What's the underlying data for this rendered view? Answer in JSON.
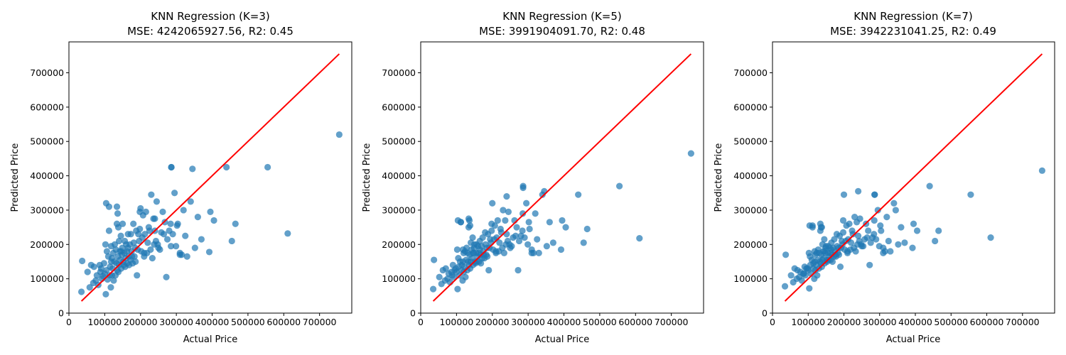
{
  "figure": {
    "background": "#ffffff"
  },
  "style": {
    "point_color": "#1f77b4",
    "point_opacity": 0.7,
    "reference_line_color": "#ff0000"
  },
  "chart_data": [
    {
      "type": "scatter",
      "title_line1": "KNN Regression (K=3)",
      "title_line2": "MSE: 4242065927.56, R2: 0.45",
      "xlabel": "Actual Price",
      "ylabel": "Predicted Price",
      "xlim": [
        0,
        790000
      ],
      "ylim": [
        0,
        790000
      ],
      "xticks": [
        0,
        100000,
        200000,
        300000,
        400000,
        500000,
        600000,
        700000
      ],
      "yticks": [
        0,
        100000,
        200000,
        300000,
        400000,
        500000,
        600000,
        700000
      ],
      "reference_line": {
        "x": [
          34900,
          755000
        ],
        "y": [
          34900,
          755000
        ]
      },
      "grid": false,
      "points": {
        "x": [
          34900,
          37000,
          52000,
          58000,
          62000,
          68000,
          70000,
          75000,
          78000,
          82000,
          86000,
          88000,
          90000,
          92000,
          95000,
          98000,
          100000,
          102000,
          103000,
          105000,
          106000,
          108000,
          110000,
          112000,
          114000,
          115000,
          117000,
          118000,
          120000,
          120000,
          122000,
          124000,
          125000,
          127000,
          128000,
          130000,
          131000,
          133000,
          134000,
          135000,
          136000,
          137000,
          138000,
          140000,
          140000,
          142000,
          143000,
          145000,
          146000,
          148000,
          149000,
          150000,
          152000,
          153000,
          155000,
          156000,
          157000,
          159000,
          160000,
          162000,
          163000,
          165000,
          167000,
          168000,
          170000,
          172000,
          173000,
          175000,
          176000,
          178000,
          180000,
          181000,
          183000,
          185000,
          186000,
          188000,
          190000,
          192000,
          194000,
          196000,
          198000,
          200000,
          202000,
          205000,
          207000,
          210000,
          212000,
          215000,
          218000,
          220000,
          223000,
          225000,
          228000,
          230000,
          233000,
          236000,
          238000,
          240000,
          243000,
          245000,
          248000,
          250000,
          254000,
          258000,
          262000,
          265000,
          268000,
          272000,
          275000,
          280000,
          284000,
          286000,
          290000,
          295000,
          299000,
          304000,
          310000,
          315000,
          320000,
          325000,
          330000,
          340000,
          345000,
          352000,
          360000,
          370000,
          392000,
          395000,
          405000,
          440000,
          455000,
          465000,
          555000,
          611000,
          755000,
          104000,
          112000,
          134000,
          138000,
          198000,
          240000,
          285000,
          286000,
          302000,
          310000,
          118000,
          210000,
          146000,
          165000
        ],
        "y": [
          62000,
          152000,
          120000,
          75000,
          140000,
          88000,
          135000,
          95000,
          110000,
          82000,
          140000,
          120000,
          130000,
          100000,
          108000,
          145000,
          115000,
          200000,
          55000,
          125000,
          180000,
          98000,
          165000,
          240000,
          110000,
          135000,
          75000,
          150000,
          110000,
          160000,
          130000,
          175000,
          95000,
          150000,
          200000,
          110000,
          185000,
          145000,
          260000,
          125000,
          290000,
          165000,
          120000,
          140000,
          210000,
          180000,
          155000,
          225000,
          130000,
          170000,
          190000,
          260000,
          150000,
          140000,
          175000,
          210000,
          135000,
          160000,
          200000,
          180000,
          145000,
          190000,
          165000,
          140000,
          200000,
          155000,
          230000,
          180000,
          165000,
          145000,
          260000,
          205000,
          165000,
          190000,
          150000,
          240000,
          110000,
          185000,
          230000,
          210000,
          295000,
          305000,
          180000,
          220000,
          285000,
          165000,
          230000,
          295000,
          175000,
          205000,
          250000,
          240000,
          185000,
          345000,
          160000,
          275000,
          200000,
          240000,
          210000,
          325000,
          200000,
          190000,
          185000,
          235000,
          295000,
          230000,
          265000,
          105000,
          215000,
          240000,
          260000,
          425000,
          230000,
          350000,
          195000,
          260000,
          175000,
          170000,
          300000,
          225000,
          165000,
          325000,
          420000,
          190000,
          280000,
          215000,
          178000,
          295000,
          270000,
          425000,
          210000,
          260000,
          425000,
          232000,
          520000,
          320000,
          310000,
          310000,
          250000,
          245000,
          275000,
          195000,
          425000,
          255000,
          170000,
          195000,
          175000,
          180000,
          230000
        ]
      }
    },
    {
      "type": "scatter",
      "title_line1": "KNN Regression (K=5)",
      "title_line2": "MSE: 3991904091.70, R2: 0.48",
      "xlabel": "Actual Price",
      "ylabel": "Predicted Price",
      "xlim": [
        0,
        790000
      ],
      "ylim": [
        0,
        790000
      ],
      "xticks": [
        0,
        100000,
        200000,
        300000,
        400000,
        500000,
        600000,
        700000
      ],
      "yticks": [
        0,
        100000,
        200000,
        300000,
        400000,
        500000,
        600000,
        700000
      ],
      "reference_line": {
        "x": [
          34900,
          755000
        ],
        "y": [
          34900,
          755000
        ]
      },
      "grid": false,
      "points": {
        "x": [
          34900,
          37000,
          52000,
          58000,
          62000,
          68000,
          70000,
          75000,
          78000,
          82000,
          86000,
          88000,
          90000,
          92000,
          95000,
          98000,
          100000,
          102000,
          103000,
          105000,
          106000,
          108000,
          110000,
          112000,
          114000,
          115000,
          117000,
          118000,
          120000,
          120000,
          122000,
          124000,
          125000,
          127000,
          128000,
          130000,
          131000,
          133000,
          134000,
          135000,
          136000,
          137000,
          138000,
          140000,
          140000,
          142000,
          143000,
          145000,
          146000,
          148000,
          149000,
          150000,
          152000,
          153000,
          155000,
          156000,
          157000,
          159000,
          160000,
          162000,
          163000,
          165000,
          167000,
          168000,
          170000,
          172000,
          173000,
          175000,
          176000,
          178000,
          180000,
          181000,
          183000,
          185000,
          186000,
          188000,
          190000,
          192000,
          194000,
          196000,
          198000,
          200000,
          202000,
          205000,
          207000,
          210000,
          212000,
          215000,
          218000,
          220000,
          223000,
          225000,
          228000,
          230000,
          233000,
          236000,
          238000,
          240000,
          243000,
          245000,
          248000,
          250000,
          254000,
          258000,
          262000,
          265000,
          268000,
          272000,
          275000,
          280000,
          284000,
          286000,
          290000,
          295000,
          299000,
          304000,
          310000,
          315000,
          320000,
          325000,
          330000,
          340000,
          345000,
          352000,
          360000,
          370000,
          392000,
          395000,
          405000,
          440000,
          455000,
          465000,
          555000,
          611000,
          755000,
          104000,
          112000,
          134000,
          138000,
          198000,
          240000,
          285000,
          286000,
          302000,
          310000,
          118000,
          210000,
          146000,
          165000
        ],
        "y": [
          70000,
          155000,
          105000,
          85000,
          125000,
          95000,
          130000,
          100000,
          115000,
          90000,
          120000,
          110000,
          140000,
          105000,
          125000,
          130000,
          120000,
          185000,
          70000,
          160000,
          135000,
          110000,
          150000,
          265000,
          125000,
          140000,
          95000,
          150000,
          120000,
          175000,
          135000,
          180000,
          105000,
          155000,
          190000,
          125000,
          175000,
          150000,
          250000,
          140000,
          270000,
          170000,
          130000,
          150000,
          205000,
          185000,
          160000,
          220000,
          140000,
          175000,
          190000,
          200000,
          150000,
          145000,
          175000,
          200000,
          150000,
          165000,
          195000,
          175000,
          150000,
          185000,
          170000,
          145000,
          195000,
          160000,
          220000,
          180000,
          170000,
          160000,
          235000,
          200000,
          170000,
          190000,
          165000,
          230000,
          125000,
          190000,
          215000,
          205000,
          260000,
          320000,
          185000,
          215000,
          255000,
          175000,
          220000,
          270000,
          180000,
          205000,
          245000,
          235000,
          190000,
          300000,
          175000,
          270000,
          200000,
          230000,
          210000,
          295000,
          200000,
          190000,
          195000,
          220000,
          270000,
          225000,
          250000,
          125000,
          210000,
          225000,
          240000,
          365000,
          220000,
          320000,
          200000,
          245000,
          185000,
          175000,
          290000,
          215000,
          175000,
          345000,
          355000,
          195000,
          265000,
          205000,
          185000,
          270000,
          250000,
          345000,
          205000,
          245000,
          370000,
          218000,
          465000,
          270000,
          265000,
          275000,
          255000,
          240000,
          340000,
          290000,
          370000,
          265000,
          175000,
          185000,
          180000,
          175000,
          210000
        ]
      }
    },
    {
      "type": "scatter",
      "title_line1": "KNN Regression (K=7)",
      "title_line2": "MSE: 3942231041.25, R2: 0.49",
      "xlabel": "Actual Price",
      "ylabel": "Predicted Price",
      "xlim": [
        0,
        790000
      ],
      "ylim": [
        0,
        790000
      ],
      "xticks": [
        0,
        100000,
        200000,
        300000,
        400000,
        500000,
        600000,
        700000
      ],
      "yticks": [
        0,
        100000,
        200000,
        300000,
        400000,
        500000,
        600000,
        700000
      ],
      "reference_line": {
        "x": [
          34900,
          755000
        ],
        "y": [
          34900,
          755000
        ]
      },
      "grid": false,
      "points": {
        "x": [
          34900,
          37000,
          52000,
          58000,
          62000,
          68000,
          70000,
          75000,
          78000,
          82000,
          86000,
          88000,
          90000,
          92000,
          95000,
          98000,
          100000,
          102000,
          103000,
          105000,
          106000,
          108000,
          110000,
          112000,
          114000,
          115000,
          117000,
          118000,
          120000,
          120000,
          122000,
          124000,
          125000,
          127000,
          128000,
          130000,
          131000,
          133000,
          134000,
          135000,
          136000,
          137000,
          138000,
          140000,
          140000,
          142000,
          143000,
          145000,
          146000,
          148000,
          149000,
          150000,
          152000,
          153000,
          155000,
          156000,
          157000,
          159000,
          160000,
          162000,
          163000,
          165000,
          167000,
          168000,
          170000,
          172000,
          173000,
          175000,
          176000,
          178000,
          180000,
          181000,
          183000,
          185000,
          186000,
          188000,
          190000,
          192000,
          194000,
          196000,
          198000,
          200000,
          202000,
          205000,
          207000,
          210000,
          212000,
          215000,
          218000,
          220000,
          223000,
          225000,
          228000,
          230000,
          233000,
          236000,
          238000,
          240000,
          243000,
          245000,
          248000,
          250000,
          254000,
          258000,
          262000,
          265000,
          268000,
          272000,
          275000,
          280000,
          284000,
          286000,
          290000,
          295000,
          299000,
          304000,
          310000,
          315000,
          320000,
          325000,
          330000,
          340000,
          345000,
          352000,
          360000,
          370000,
          392000,
          395000,
          405000,
          440000,
          455000,
          465000,
          555000,
          611000,
          755000,
          104000,
          112000,
          134000,
          138000,
          198000,
          240000,
          285000,
          286000,
          302000,
          310000,
          118000,
          210000,
          146000,
          165000
        ],
        "y": [
          78000,
          170000,
          110000,
          90000,
          130000,
          100000,
          125000,
          105000,
          120000,
          95000,
          115000,
          115000,
          135000,
          110000,
          130000,
          130000,
          125000,
          175000,
          72000,
          165000,
          140000,
          115000,
          155000,
          255000,
          130000,
          145000,
          100000,
          150000,
          125000,
          170000,
          140000,
          175000,
          110000,
          155000,
          185000,
          130000,
          175000,
          150000,
          240000,
          145000,
          250000,
          170000,
          135000,
          155000,
          200000,
          180000,
          160000,
          215000,
          145000,
          175000,
          190000,
          195000,
          155000,
          150000,
          175000,
          195000,
          155000,
          165000,
          190000,
          175000,
          155000,
          185000,
          170000,
          150000,
          190000,
          165000,
          215000,
          180000,
          170000,
          165000,
          230000,
          195000,
          175000,
          190000,
          170000,
          225000,
          135000,
          190000,
          210000,
          200000,
          270000,
          345000,
          185000,
          210000,
          255000,
          180000,
          215000,
          260000,
          185000,
          205000,
          240000,
          230000,
          190000,
          280000,
          180000,
          265000,
          200000,
          225000,
          210000,
          275000,
          200000,
          195000,
          195000,
          215000,
          260000,
          220000,
          240000,
          140000,
          205000,
          220000,
          230000,
          345000,
          215000,
          300000,
          195000,
          240000,
          190000,
          180000,
          280000,
          210000,
          180000,
          320000,
          300000,
          200000,
          250000,
          205000,
          190000,
          260000,
          240000,
          370000,
          210000,
          240000,
          345000,
          220000,
          415000,
          255000,
          250000,
          260000,
          250000,
          235000,
          355000,
          270000,
          345000,
          255000,
          175000,
          180000,
          175000,
          180000,
          205000
        ]
      }
    }
  ]
}
